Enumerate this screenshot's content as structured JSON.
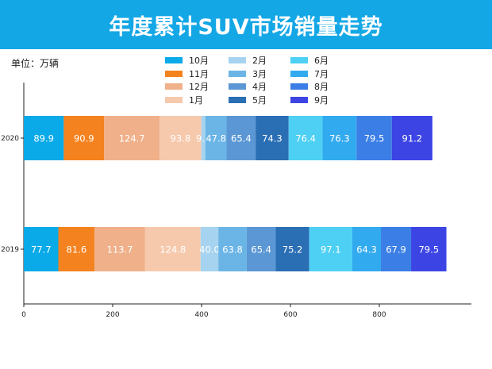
{
  "header": {
    "title": "年度累计SUV市场销量走势"
  },
  "unit_label": "单位：万辆",
  "chart_data": {
    "type": "bar",
    "orientation": "horizontal",
    "stacked": true,
    "title": "年度累计SUV市场销量走势",
    "xlabel": "",
    "ylabel": "",
    "xlim": [
      0,
      1000
    ],
    "x_ticks": [
      0,
      200,
      400,
      600,
      800
    ],
    "categories": [
      "2019",
      "2020"
    ],
    "legend_position": "top",
    "series": [
      {
        "name": "10月",
        "color": "#0aaae8",
        "values": [
          77.7,
          89.9
        ]
      },
      {
        "name": "11月",
        "color": "#f4821f",
        "values": [
          81.6,
          90.9
        ]
      },
      {
        "name": "12月",
        "color": "#f0b08a",
        "values": [
          113.7,
          124.7
        ]
      },
      {
        "name": "1月",
        "color": "#f6c9ad",
        "values": [
          124.8,
          93.8
        ]
      },
      {
        "name": "2月",
        "color": "#a6d3ef",
        "values": [
          40.0,
          9.2
        ]
      },
      {
        "name": "3月",
        "color": "#6bb5e6",
        "values": [
          63.8,
          47.8
        ]
      },
      {
        "name": "4月",
        "color": "#5a97d4",
        "values": [
          65.4,
          65.4
        ]
      },
      {
        "name": "5月",
        "color": "#2a6eb4",
        "values": [
          75.2,
          74.3
        ]
      },
      {
        "name": "6月",
        "color": "#4ed0f4",
        "values": [
          97.1,
          76.4
        ]
      },
      {
        "name": "7月",
        "color": "#32aaef",
        "values": [
          64.3,
          76.3
        ]
      },
      {
        "name": "8月",
        "color": "#3b7fe6",
        "values": [
          67.9,
          79.5
        ]
      },
      {
        "name": "9月",
        "color": "#3c45e4",
        "values": [
          79.5,
          91.2
        ]
      }
    ],
    "data_labels": [
      [
        "77.7",
        "89.9"
      ],
      [
        "81.6",
        "90.9"
      ],
      [
        "113.7",
        "124.7"
      ],
      [
        "124.8",
        "93.8"
      ],
      [
        "40.0",
        "9.2"
      ],
      [
        "63.8",
        "47.8"
      ],
      [
        "65.4",
        "65.4"
      ],
      [
        "75.2",
        "74.3"
      ],
      [
        "97.1",
        "76.4"
      ],
      [
        "64.3",
        "76.3"
      ],
      [
        "67.9",
        "79.5"
      ],
      [
        "79.5",
        "91.2"
      ]
    ]
  }
}
